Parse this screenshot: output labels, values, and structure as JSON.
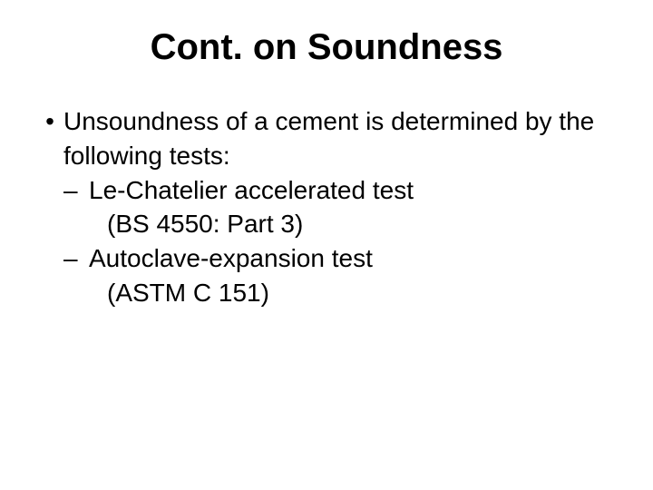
{
  "slide": {
    "title": "Cont. on Soundness",
    "bullet1_marker": "•",
    "bullet1_text": "Unsoundness of a cement is determined by the following tests:",
    "sub_marker": "–",
    "sub1_text": "Le-Chatelier accelerated test",
    "sub1_detail": "(BS 4550: Part 3)",
    "sub2_text": "Autoclave-expansion test",
    "sub2_detail": "(ASTM C 151)",
    "title_fontsize": 40,
    "body_fontsize": 28,
    "text_color": "#000000",
    "background_color": "#ffffff",
    "font_family": "Arial"
  }
}
